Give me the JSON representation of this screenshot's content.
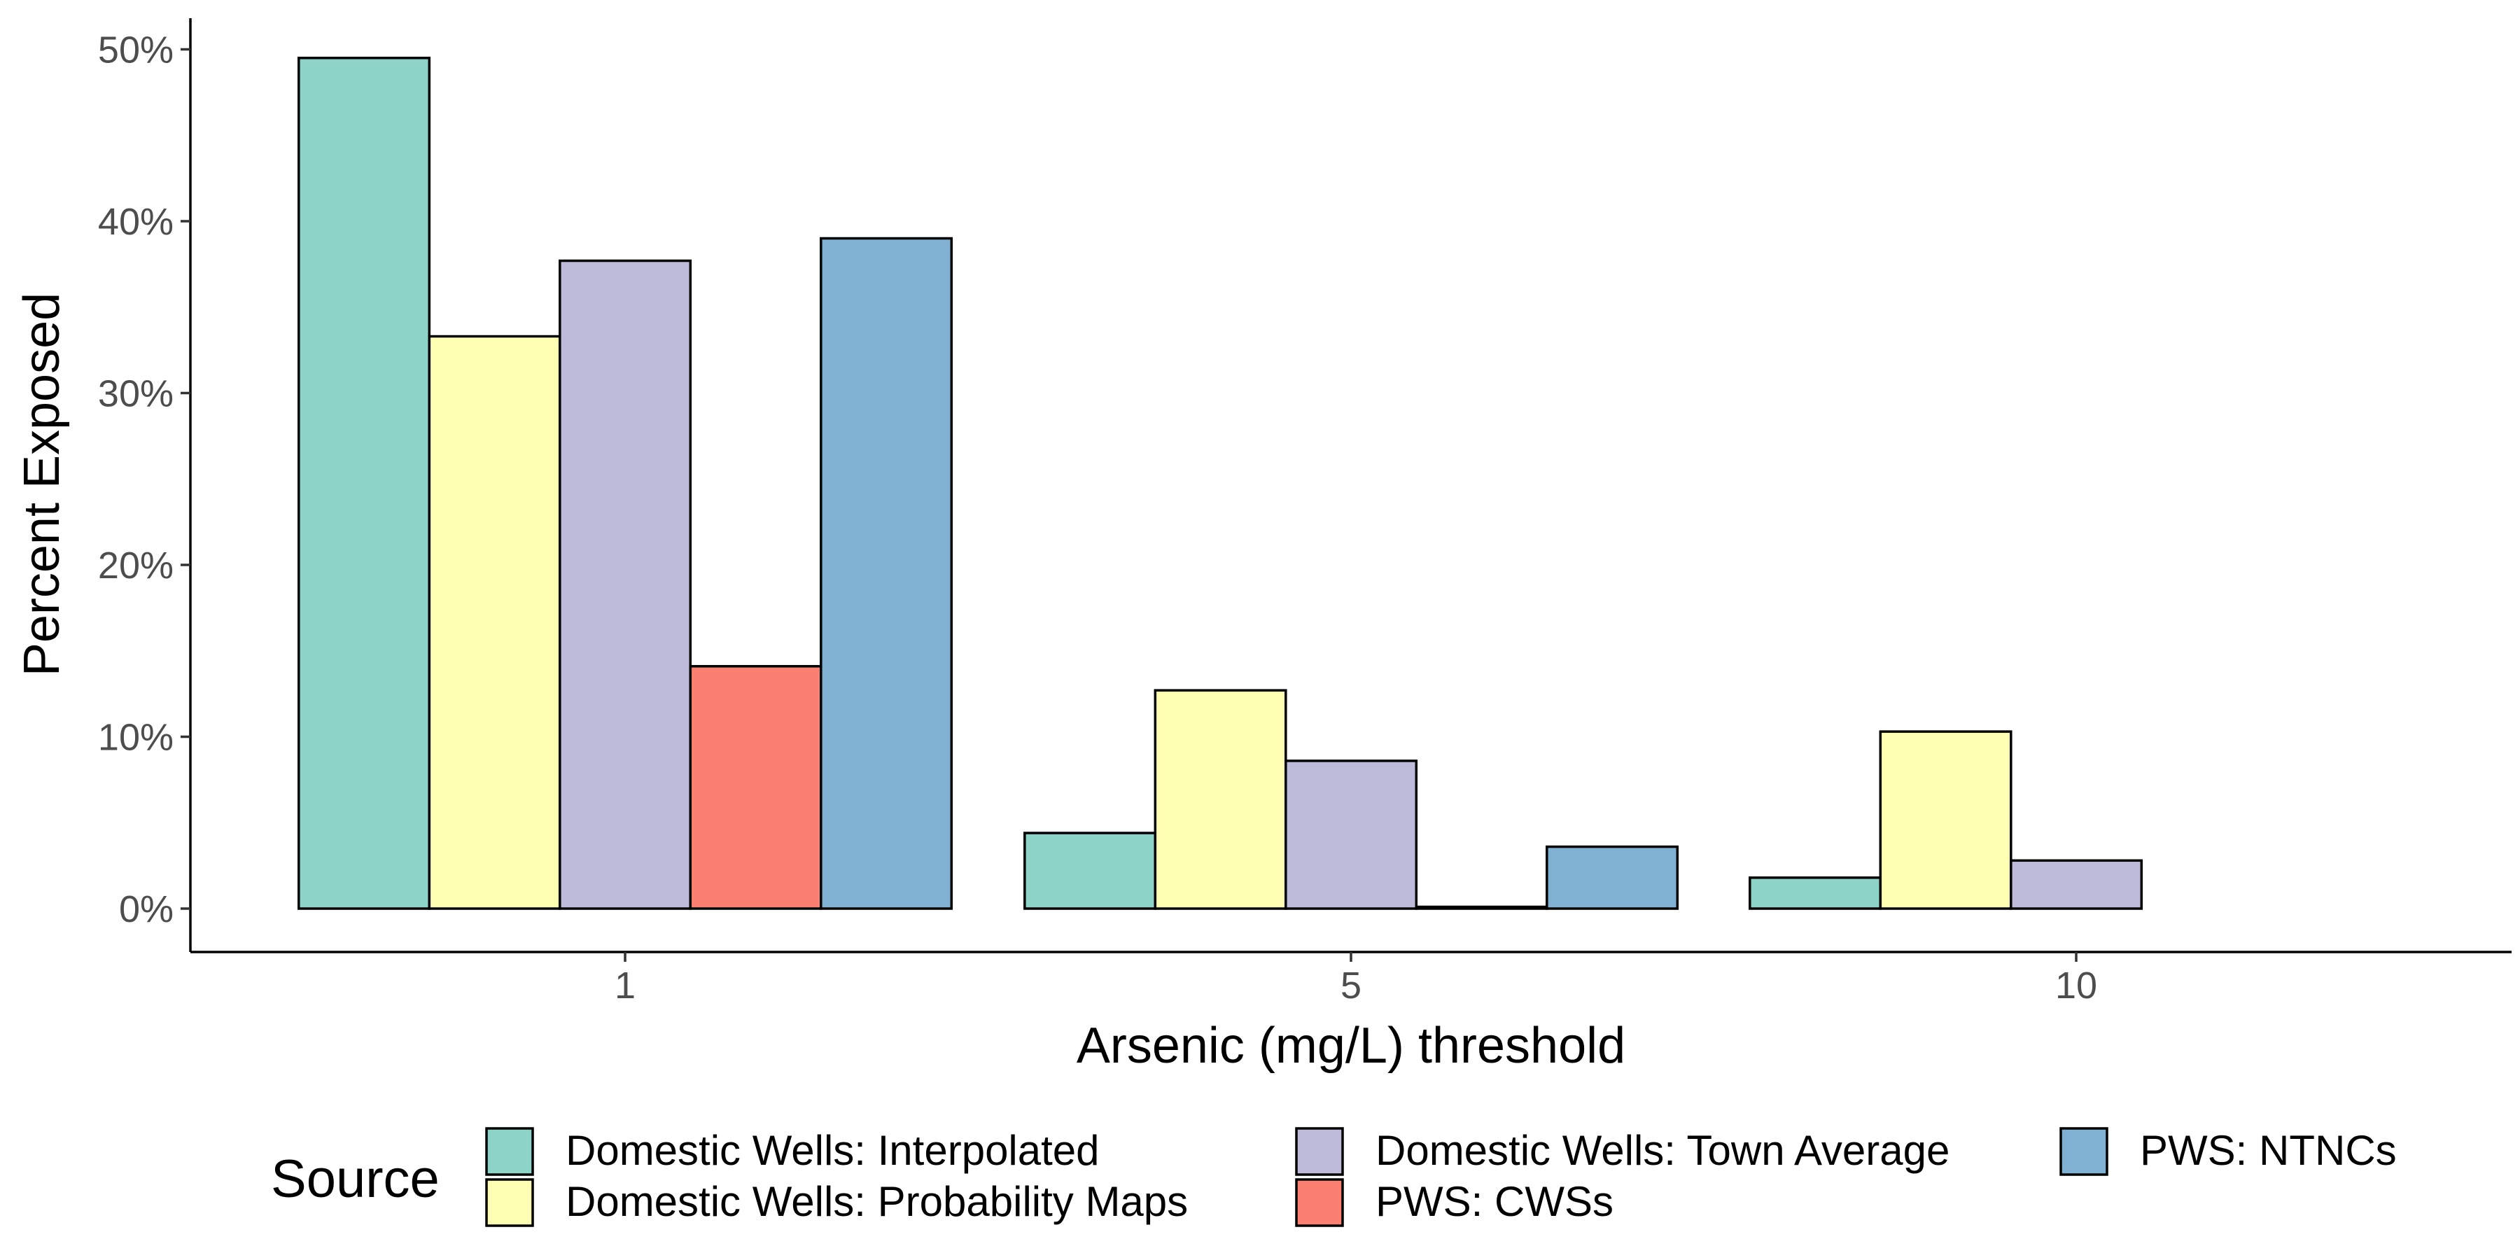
{
  "chart_data": {
    "type": "bar",
    "categories": [
      "1",
      "5",
      "10"
    ],
    "series": [
      {
        "name": "Domestic Wells: Interpolated",
        "color": "#8DD3C7",
        "values": [
          49.5,
          4.4,
          1.8
        ]
      },
      {
        "name": "Domestic Wells: Probability Maps",
        "color": "#FFFFB3",
        "values": [
          33.3,
          12.7,
          10.3
        ]
      },
      {
        "name": "Domestic Wells: Town Average",
        "color": "#BEBADA",
        "values": [
          37.7,
          8.6,
          2.8
        ]
      },
      {
        "name": "PWS: CWSs",
        "color": "#FB8072",
        "values": [
          14.1,
          0.1,
          0
        ]
      },
      {
        "name": "PWS: NTNCs",
        "color": "#80B1D3",
        "values": [
          39.0,
          3.6,
          0
        ]
      }
    ],
    "title": "",
    "xlabel": "Arsenic (mg/L) threshold",
    "ylabel": "Percent Exposed",
    "ylim": [
      0,
      52
    ],
    "yticks": [
      0,
      10,
      20,
      30,
      40,
      50
    ],
    "ytick_labels": [
      "0%",
      "10%",
      "20%",
      "30%",
      "40%",
      "50%"
    ],
    "grid": false,
    "legend": {
      "title": "Source",
      "position": "bottom"
    }
  }
}
